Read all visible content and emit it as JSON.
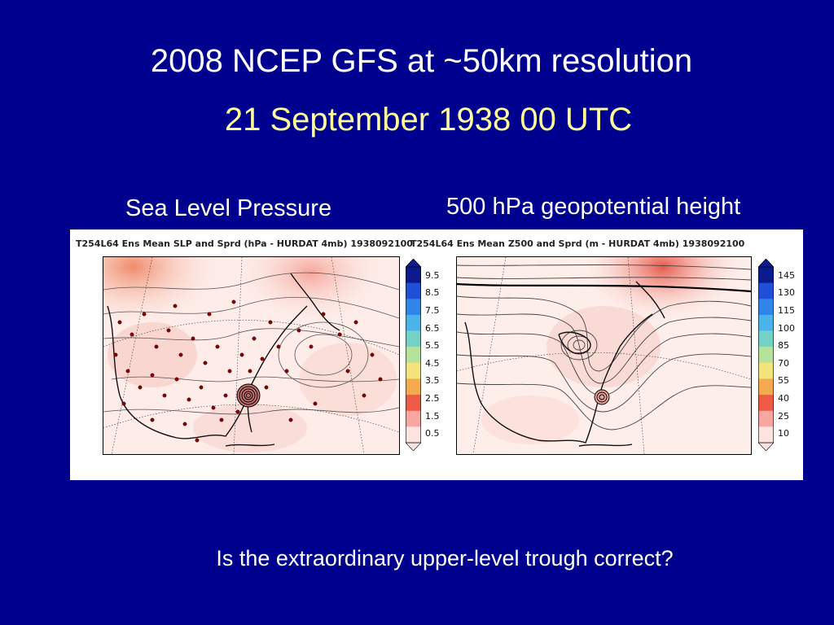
{
  "slide": {
    "title": "2008 NCEP GFS at ~50km resolution",
    "subtitle": "21 September 1938 00 UTC",
    "question": "Is the extraordinary upper-level trough correct?"
  },
  "panels": {
    "left": {
      "label": "Sea Level Pressure",
      "header": "T254L64 Ens Mean SLP and Sprd (hPa - HURDAT 4mb) 1938092100",
      "colorbar_ticks": [
        "9.5",
        "8.5",
        "7.5",
        "6.5",
        "5.5",
        "4.5",
        "3.5",
        "2.5",
        "1.5",
        "0.5"
      ]
    },
    "right": {
      "label": "500 hPa geopotential height",
      "header": "T254L64 Ens Mean Z500 and Sprd (m - HURDAT 4mb) 1938092100",
      "colorbar_ticks": [
        "145",
        "130",
        "115",
        "100",
        "85",
        "70",
        "55",
        "40",
        "25",
        "10"
      ]
    }
  },
  "colorbar_colors": [
    "#0b1a8c",
    "#1f4fd6",
    "#2f86e8",
    "#49b3ea",
    "#74d1c6",
    "#b6e39a",
    "#f2e37a",
    "#f6a94f",
    "#ee5a45",
    "#f7a6a0",
    "#fde3e0"
  ]
}
